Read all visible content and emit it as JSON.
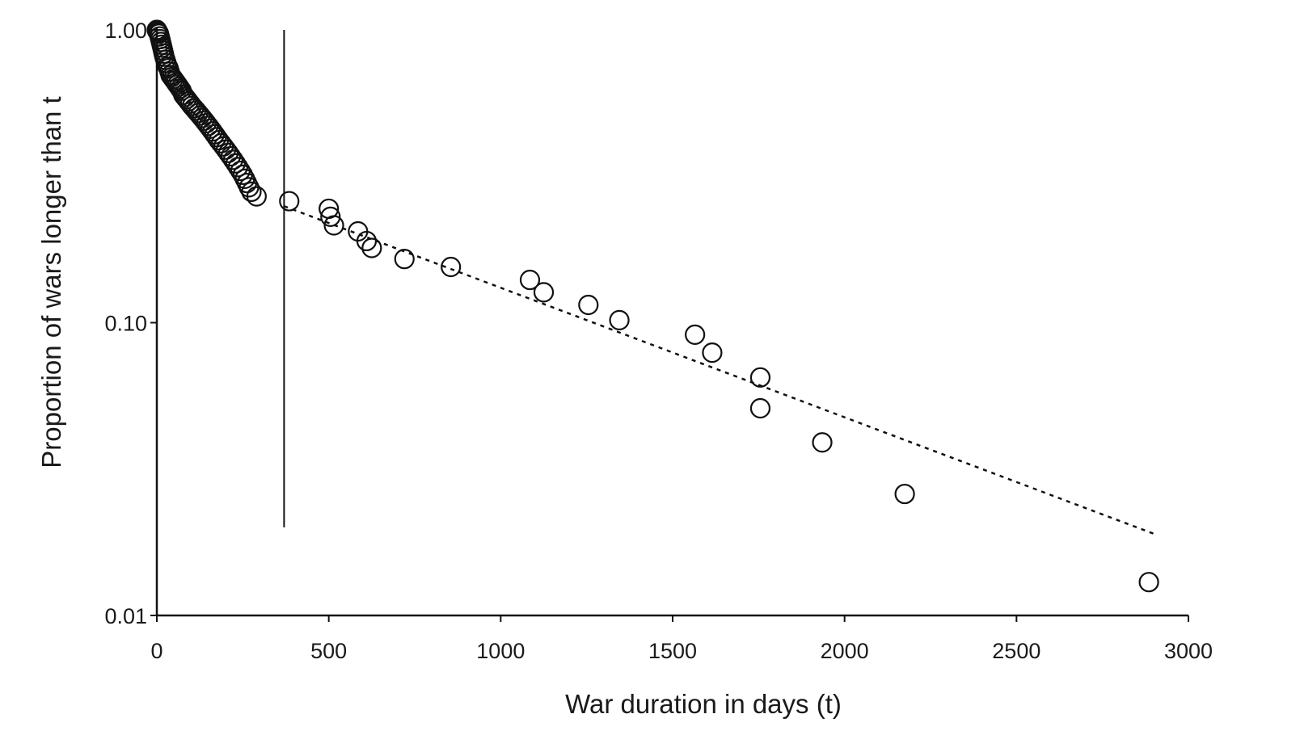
{
  "chart_data": {
    "type": "scatter",
    "title": "",
    "xlabel": "War duration in days (t)",
    "ylabel": "Proportion of wars longer than t",
    "xlim": [
      0,
      3000
    ],
    "ylim": [
      0.01,
      1.0
    ],
    "y_scale": "log",
    "grid": false,
    "legend": "none",
    "x_ticks": [
      0,
      500,
      1000,
      1500,
      2000,
      2500,
      3000
    ],
    "x_tick_labels": [
      "0",
      "500",
      "1000",
      "1500",
      "2000",
      "2500",
      "3000"
    ],
    "y_ticks": [
      0.01,
      0.1,
      1.0
    ],
    "y_tick_labels": [
      "0.01",
      "0.10",
      "1.00"
    ],
    "cutoff_line_x": 370,
    "cutoff_line_y_range": [
      0.02,
      1.0
    ],
    "fit_line": {
      "style": "dotted",
      "x_range": [
        370,
        2900
      ],
      "y_start": 0.25,
      "y_end": 0.019
    },
    "series": [
      {
        "marker": "open-circle",
        "x": [
          0,
          2,
          4,
          6,
          8,
          10,
          12,
          14,
          16,
          18,
          20,
          22,
          25,
          28,
          31,
          34,
          37,
          40,
          44,
          48,
          52,
          56,
          60,
          64,
          68,
          72,
          77,
          82,
          87,
          92,
          97,
          102,
          108,
          114,
          120,
          126,
          132,
          138,
          144,
          150,
          156,
          162,
          168,
          174,
          180,
          187,
          194,
          201,
          208,
          215,
          222,
          229,
          236,
          243,
          250,
          256,
          262,
          268,
          275,
          290,
          385,
          500,
          505,
          515,
          585,
          610,
          625,
          720,
          855,
          1085,
          1125,
          1255,
          1345,
          1565,
          1615,
          1755,
          1755,
          1935,
          2175,
          2885
        ],
        "y": [
          1.0,
          0.99,
          0.98,
          0.97,
          0.95,
          0.93,
          0.91,
          0.89,
          0.87,
          0.85,
          0.83,
          0.81,
          0.79,
          0.77,
          0.75,
          0.74,
          0.72,
          0.7,
          0.69,
          0.68,
          0.67,
          0.66,
          0.65,
          0.64,
          0.63,
          0.62,
          0.6,
          0.59,
          0.58,
          0.57,
          0.56,
          0.55,
          0.54,
          0.53,
          0.52,
          0.51,
          0.5,
          0.49,
          0.48,
          0.47,
          0.46,
          0.45,
          0.44,
          0.43,
          0.42,
          0.41,
          0.4,
          0.39,
          0.38,
          0.37,
          0.36,
          0.35,
          0.34,
          0.33,
          0.32,
          0.31,
          0.3,
          0.29,
          0.28,
          0.27,
          0.26,
          0.245,
          0.23,
          0.215,
          0.205,
          0.19,
          0.18,
          0.165,
          0.155,
          0.14,
          0.127,
          0.115,
          0.102,
          0.091,
          0.079,
          0.065,
          0.051,
          0.039,
          0.026,
          0.013
        ]
      }
    ]
  }
}
